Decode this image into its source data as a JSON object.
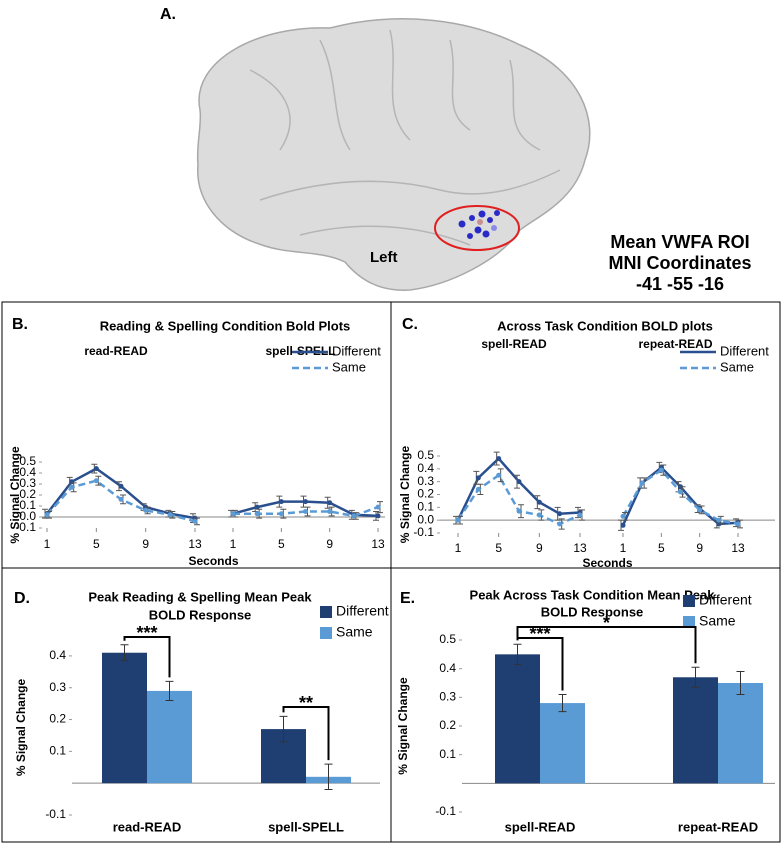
{
  "figure": {
    "panel_label": "A.",
    "region_label": "Left",
    "coordinates_lines": [
      "Mean VWFA ROI",
      "MNI Coordinates",
      "-41 -55 -16"
    ]
  },
  "chart_data": [
    {
      "type": "line",
      "panel_label": "B.",
      "title": "Reading & Spelling Condition Bold Plots",
      "x_label": "Seconds",
      "y_label": "% Signal Change",
      "xlim": [
        1,
        13
      ],
      "xticks": [
        1,
        5,
        9,
        13
      ],
      "ylim": [
        -0.1,
        0.5
      ],
      "yticks": [
        -0.1,
        {
          "value": 0,
          "label": "0.0"
        },
        0.1,
        0.2,
        0.3,
        0.4,
        0.5
      ],
      "series": [
        {
          "name": "Different",
          "color": "#2a4f8f",
          "line_style": "solid"
        },
        {
          "name": "Same",
          "color": "#5b9bd5",
          "line_style": "dashed"
        }
      ],
      "groups": [
        {
          "name": "read-READ",
          "x": [
            1,
            3,
            5,
            7,
            9,
            11,
            13
          ],
          "values": [
            [
              0.03,
              0.32,
              0.44,
              0.28,
              0.09,
              0.03,
              -0.01
            ],
            [
              0.02,
              0.27,
              0.33,
              0.16,
              0.06,
              0.02,
              -0.04
            ]
          ],
          "errors": [
            [
              0.04,
              0.04,
              0.04,
              0.04,
              0.03,
              0.03,
              0.04
            ],
            [
              0.03,
              0.04,
              0.04,
              0.04,
              0.03,
              0.03,
              0.03
            ]
          ]
        },
        {
          "name": "spell-SPELL",
          "x": [
            1,
            3,
            5,
            7,
            9,
            11,
            13
          ],
          "values": [
            [
              0.03,
              0.09,
              0.14,
              0.14,
              0.13,
              0.02,
              0.01
            ],
            [
              0.03,
              0.03,
              0.03,
              0.05,
              0.05,
              0.01,
              0.09
            ]
          ],
          "errors": [
            [
              0.03,
              0.04,
              0.05,
              0.05,
              0.05,
              0.04,
              0.04
            ],
            [
              0.03,
              0.04,
              0.04,
              0.04,
              0.04,
              0.03,
              0.05
            ]
          ]
        }
      ]
    },
    {
      "type": "line",
      "panel_label": "C.",
      "title": "Across Task Condition BOLD plots",
      "x_label": "Seconds",
      "y_label": "% Signal Change",
      "xlim": [
        1,
        13
      ],
      "xticks": [
        1,
        5,
        9,
        13
      ],
      "ylim": [
        -0.1,
        0.5
      ],
      "yticks": [
        -0.1,
        {
          "value": 0,
          "label": "0.0"
        },
        0.1,
        0.2,
        0.3,
        0.4,
        0.5
      ],
      "series": [
        {
          "name": "Different",
          "color": "#2a4f8f",
          "line_style": "solid"
        },
        {
          "name": "Same",
          "color": "#5b9bd5",
          "line_style": "dashed"
        }
      ],
      "groups": [
        {
          "name": "spell-READ",
          "x": [
            1,
            3,
            5,
            7,
            9,
            11,
            13
          ],
          "values": [
            [
              0.0,
              0.33,
              0.48,
              0.3,
              0.14,
              0.05,
              0.06
            ],
            [
              0.0,
              0.24,
              0.35,
              0.07,
              0.04,
              -0.03,
              0.04
            ]
          ],
          "errors": [
            [
              0.03,
              0.05,
              0.05,
              0.05,
              0.05,
              0.05,
              0.04
            ],
            [
              0.03,
              0.04,
              0.05,
              0.05,
              0.04,
              0.04,
              0.04
            ]
          ]
        },
        {
          "name": "repeat-READ",
          "x": [
            1,
            3,
            5,
            7,
            9,
            11,
            13
          ],
          "values": [
            [
              -0.04,
              0.29,
              0.41,
              0.26,
              0.09,
              -0.03,
              -0.02
            ],
            [
              0.03,
              0.29,
              0.39,
              0.22,
              0.08,
              0.0,
              -0.03
            ]
          ],
          "errors": [
            [
              0.04,
              0.04,
              0.04,
              0.04,
              0.03,
              0.03,
              0.03
            ],
            [
              0.03,
              0.04,
              0.04,
              0.04,
              0.03,
              0.03,
              0.03
            ]
          ]
        }
      ]
    },
    {
      "type": "bar",
      "panel_label": "D.",
      "title": [
        "Peak Reading & Spelling Mean Peak",
        "BOLD Response"
      ],
      "y_label": "% Signal Change",
      "ylim": [
        -0.1,
        0.45
      ],
      "yticks": [
        -0.1,
        0.1,
        0.2,
        0.3,
        0.4
      ],
      "categories": [
        "read-READ",
        "spell-SPELL"
      ],
      "series": [
        {
          "name": "Different",
          "color": "#1f3f73",
          "values": [
            0.41,
            0.17
          ],
          "errors": [
            0.025,
            0.04
          ]
        },
        {
          "name": "Same",
          "color": "#5b9bd5",
          "values": [
            0.29,
            0.02
          ],
          "errors": [
            0.03,
            0.04
          ]
        }
      ],
      "annotations": [
        "***",
        "**"
      ]
    },
    {
      "type": "bar",
      "panel_label": "E.",
      "title": [
        "Peak Across Task Condition Mean Peak",
        "BOLD Response"
      ],
      "y_label": "% Signal Change",
      "ylim": [
        -0.1,
        0.5
      ],
      "yticks": [
        -0.1,
        0.1,
        0.2,
        0.3,
        0.4,
        0.5
      ],
      "categories": [
        "spell-READ",
        "repeat-READ"
      ],
      "series": [
        {
          "name": "Different",
          "color": "#1f3f73",
          "values": [
            0.45,
            0.37
          ],
          "errors": [
            0.035,
            0.035
          ]
        },
        {
          "name": "Same",
          "color": "#5b9bd5",
          "values": [
            0.28,
            0.35
          ],
          "errors": [
            0.03,
            0.04
          ]
        }
      ],
      "annotations": [
        "***",
        "*"
      ]
    }
  ]
}
